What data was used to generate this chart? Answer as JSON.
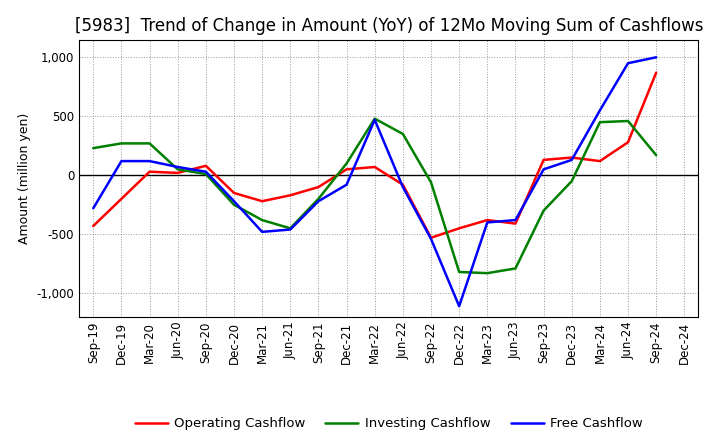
{
  "title": "[5983]  Trend of Change in Amount (YoY) of 12Mo Moving Sum of Cashflows",
  "ylabel": "Amount (million yen)",
  "x_labels": [
    "Sep-19",
    "Dec-19",
    "Mar-20",
    "Jun-20",
    "Sep-20",
    "Dec-20",
    "Mar-21",
    "Jun-21",
    "Sep-21",
    "Dec-21",
    "Mar-22",
    "Jun-22",
    "Sep-22",
    "Dec-22",
    "Mar-23",
    "Jun-23",
    "Sep-23",
    "Dec-23",
    "Mar-24",
    "Jun-24",
    "Sep-24",
    "Dec-24"
  ],
  "operating_cashflow": [
    -430,
    -200,
    30,
    20,
    80,
    -150,
    -220,
    -170,
    -100,
    50,
    70,
    -80,
    -530,
    -450,
    -380,
    -410,
    130,
    150,
    120,
    280,
    870,
    null
  ],
  "investing_cashflow": [
    230,
    270,
    270,
    50,
    10,
    -250,
    -380,
    -450,
    -200,
    100,
    480,
    350,
    -60,
    -820,
    -830,
    -790,
    -300,
    -50,
    450,
    460,
    170,
    null
  ],
  "free_cashflow": [
    -280,
    120,
    120,
    70,
    30,
    -220,
    -480,
    -460,
    -220,
    -80,
    470,
    -100,
    -540,
    -1110,
    -400,
    -380,
    50,
    130,
    550,
    950,
    1000,
    null
  ],
  "operating_color": "#ff0000",
  "investing_color": "#008000",
  "free_color": "#0000ff",
  "ylim": [
    -1200,
    1150
  ],
  "yticks": [
    -1000,
    -500,
    0,
    500,
    1000
  ],
  "background_color": "#ffffff",
  "grid_color": "#999999",
  "title_fontsize": 12,
  "axis_fontsize": 9,
  "tick_fontsize": 8.5,
  "legend_fontsize": 9.5
}
